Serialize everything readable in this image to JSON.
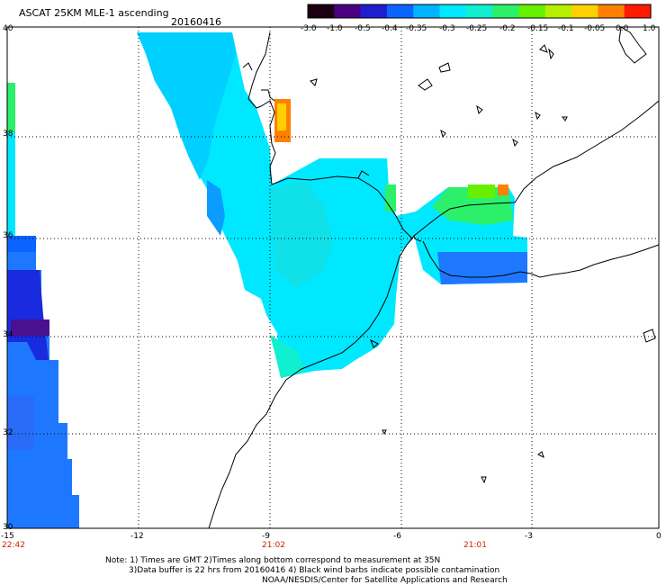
{
  "header": {
    "title": "ASCAT 25KM MLE-1 ascending",
    "date": "20160416"
  },
  "colorbar": {
    "tick_labels": [
      "-3.0",
      "-1.0",
      "-0.5",
      "-0.4",
      "-0.35",
      "-0.3",
      "-0.25",
      "-0.2",
      "-0.15",
      "-0.1",
      "-0.05",
      "0.0",
      "1.0"
    ],
    "colors": [
      "#1a0010",
      "#4a0080",
      "#1f1fcf",
      "#0a64ff",
      "#00b4ff",
      "#00e8ff",
      "#10f0d0",
      "#2cf06a",
      "#66f000",
      "#b4f000",
      "#ffd000",
      "#ff8000",
      "#ff1a00"
    ]
  },
  "axes": {
    "lon_labels": [
      "-15",
      "-12",
      "-9",
      "-6",
      "-3",
      "0"
    ],
    "lat_labels": [
      "40",
      "38",
      "36",
      "34",
      "32",
      "30"
    ],
    "time_labels": [
      "22:42",
      "21:02",
      "21:01"
    ],
    "time_color": "#cc2200"
  },
  "notes": {
    "line1": "Note: 1) Times are GMT 2)Times along bottom correspond to measurement at 35N",
    "line2": "3)Data buffer is 22 hrs from 20160416 4) Black wind barbs indicate possible contamination",
    "line3": "NOAA/NESDIS/Center for Satellite Applications and Research"
  }
}
